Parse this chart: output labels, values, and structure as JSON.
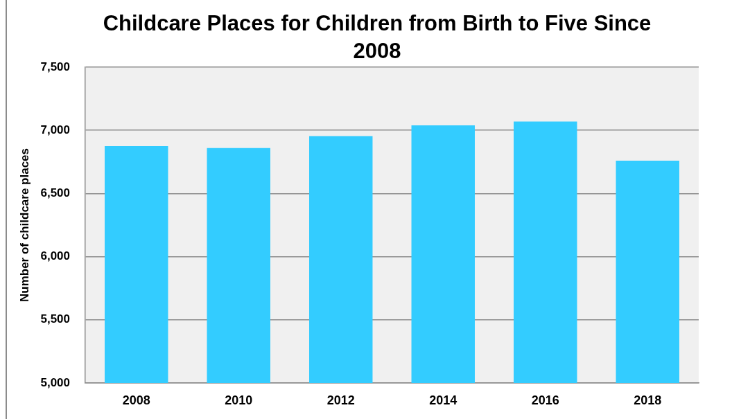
{
  "chart_data": {
    "type": "bar",
    "title": "Childcare Places for Children from Birth to Five Since 2008",
    "ylabel": "Number of childcare places",
    "categories": [
      "2008",
      "2010",
      "2012",
      "2014",
      "2016",
      "2018"
    ],
    "values": [
      6875,
      6860,
      6955,
      7040,
      7070,
      6760
    ],
    "color": "#33ccff",
    "ylim": [
      5000,
      7500
    ],
    "yticks": [
      {
        "value": 5000,
        "label": "5,000"
      },
      {
        "value": 5500,
        "label": "5,500"
      },
      {
        "value": 6000,
        "label": "6,000"
      },
      {
        "value": 6500,
        "label": "6,500"
      },
      {
        "value": 7000,
        "label": "7,000"
      },
      {
        "value": 7500,
        "label": "7,500"
      }
    ],
    "grid": "y"
  }
}
